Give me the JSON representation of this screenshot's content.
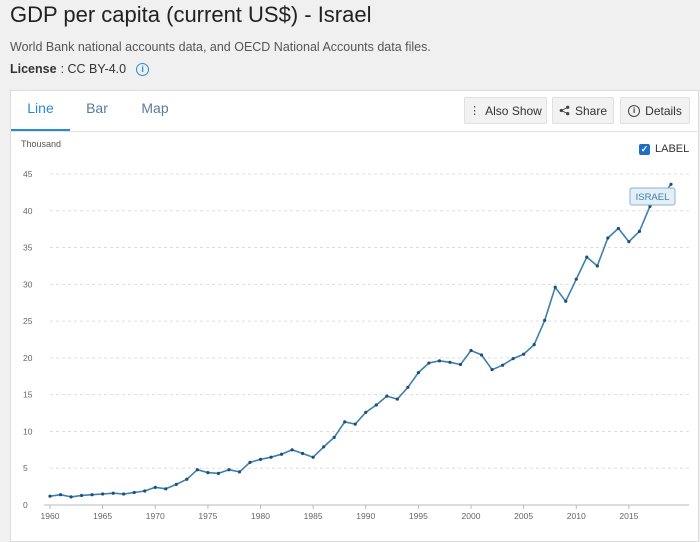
{
  "header": {
    "title": "GDP per capita (current US$) - Israel",
    "subtitle": "World Bank national accounts data, and OECD National Accounts data files.",
    "license_label": "License",
    "license_value": " : CC BY-4.0"
  },
  "tabs": [
    {
      "label": "Line",
      "active": true
    },
    {
      "label": "Bar",
      "active": false
    },
    {
      "label": "Map",
      "active": false
    }
  ],
  "actions": {
    "also_show": "Also Show",
    "share": "Share",
    "details": "Details"
  },
  "label_toggle": {
    "text": "LABEL",
    "checked": true
  },
  "colors": {
    "line": "#3d7fae",
    "accent": "#2a8bd2"
  },
  "chart_data": {
    "type": "line",
    "title": "GDP per capita (current US$) - Israel",
    "ylabel": "Thousand",
    "xlabel": "",
    "ylim": [
      0,
      45
    ],
    "xlim": [
      1960,
      2019
    ],
    "yticks": [
      0,
      5,
      10,
      15,
      20,
      25,
      30,
      35,
      40,
      45
    ],
    "xticks": [
      1960,
      1965,
      1970,
      1975,
      1980,
      1985,
      1990,
      1995,
      2000,
      2005,
      2010,
      2015
    ],
    "series": [
      {
        "name": "ISRAEL",
        "x": [
          1960,
          1961,
          1962,
          1963,
          1964,
          1965,
          1966,
          1967,
          1968,
          1969,
          1970,
          1971,
          1972,
          1973,
          1974,
          1975,
          1976,
          1977,
          1978,
          1979,
          1980,
          1981,
          1982,
          1983,
          1984,
          1985,
          1986,
          1987,
          1988,
          1989,
          1990,
          1991,
          1992,
          1993,
          1994,
          1995,
          1996,
          1997,
          1998,
          1999,
          2000,
          2001,
          2002,
          2003,
          2004,
          2005,
          2006,
          2007,
          2008,
          2009,
          2010,
          2011,
          2012,
          2013,
          2014,
          2015,
          2016,
          2017,
          2018,
          2019
        ],
        "values": [
          1.2,
          1.4,
          1.1,
          1.3,
          1.4,
          1.5,
          1.6,
          1.5,
          1.7,
          1.9,
          2.4,
          2.2,
          2.8,
          3.5,
          4.8,
          4.4,
          4.3,
          4.8,
          4.5,
          5.8,
          6.2,
          6.5,
          6.9,
          7.5,
          7.0,
          6.5,
          7.9,
          9.2,
          11.3,
          11.0,
          12.6,
          13.6,
          14.8,
          14.4,
          16.0,
          18.0,
          19.3,
          19.6,
          19.4,
          19.1,
          21.0,
          20.4,
          18.4,
          19.0,
          19.9,
          20.5,
          21.8,
          25.1,
          29.6,
          27.7,
          30.7,
          33.7,
          32.5,
          36.3,
          37.6,
          35.8,
          37.2,
          40.6,
          41.7,
          43.6
        ]
      }
    ],
    "grid": true,
    "series_label": "ISRAEL"
  }
}
